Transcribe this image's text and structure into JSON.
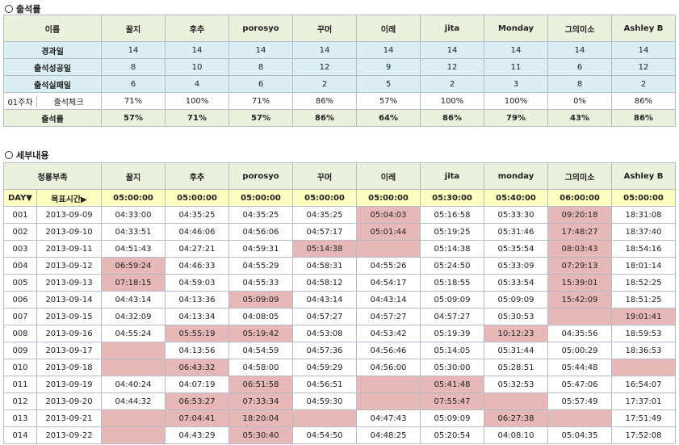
{
  "section1": {
    "title": "출석률",
    "header": [
      "이름",
      "꿀지",
      "후추",
      "porosyo",
      "꾸머",
      "이레",
      "jita",
      "Monday",
      "그의미소",
      "Ashley B"
    ],
    "rows": [
      {
        "label": "경과일",
        "values": [
          "14",
          "14",
          "14",
          "14",
          "14",
          "14",
          "14",
          "14",
          "14"
        ]
      },
      {
        "label": "출석성공일",
        "values": [
          "8",
          "10",
          "8",
          "12",
          "9",
          "12",
          "11",
          "6",
          "12"
        ]
      },
      {
        "label": "출석실패일",
        "values": [
          "6",
          "4",
          "6",
          "2",
          "5",
          "2",
          "3",
          "8",
          "2"
        ]
      }
    ],
    "check_row": {
      "week": "01주차",
      "label": "출석체크",
      "values": [
        "71%",
        "100%",
        "71%",
        "86%",
        "57%",
        "100%",
        "100%",
        "0%",
        "86%"
      ]
    },
    "rate_row": {
      "label": "출석률",
      "values": [
        "57%",
        "71%",
        "57%",
        "86%",
        "64%",
        "86%",
        "79%",
        "43%",
        "86%"
      ]
    }
  },
  "section2": {
    "title": "세부내용",
    "header": [
      "청룡부족",
      "꿀지",
      "후추",
      "porosyo",
      "꾸머",
      "이레",
      "jita",
      "monday",
      "그의미소",
      "Ashley B"
    ],
    "target": {
      "day_label": "DAY▼",
      "time_label": "목표시간▶",
      "values": [
        "05:00:00",
        "05:00:00",
        "05:00:00",
        "05:00:00",
        "05:00:00",
        "05:30:00",
        "05:40:00",
        "06:00:00",
        "05:00:00"
      ]
    },
    "rows": [
      {
        "day": "001",
        "date": "2013-09-09",
        "values": [
          "04:33:00",
          "04:35:25",
          "04:35:25",
          "04:35:25",
          "05:04:03",
          "05:16:58",
          "05:33:30",
          "09:20:18",
          "18:31:08"
        ],
        "miss": [
          4,
          7
        ]
      },
      {
        "day": "002",
        "date": "2013-09-10",
        "values": [
          "04:33:51",
          "04:46:06",
          "04:56:06",
          "04:57:17",
          "05:01:44",
          "05:19:25",
          "05:31:46",
          "17:48:27",
          "18:37:40"
        ],
        "miss": [
          4,
          7
        ]
      },
      {
        "day": "003",
        "date": "2013-09-11",
        "values": [
          "04:51:43",
          "04:27:21",
          "04:59:31",
          "05:14:38",
          "",
          "05:14:38",
          "05:35:54",
          "08:03:43",
          "18:54:16"
        ],
        "miss": [
          3,
          4,
          7
        ]
      },
      {
        "day": "004",
        "date": "2013-09-12",
        "values": [
          "06:59:24",
          "04:46:33",
          "04:55:29",
          "04:58:31",
          "04:55:26",
          "05:24:50",
          "05:33:09",
          "07:29:13",
          "18:01:14"
        ],
        "miss": [
          0,
          7
        ]
      },
      {
        "day": "005",
        "date": "2013-09-13",
        "values": [
          "07:18:15",
          "04:59:03",
          "04:55:33",
          "04:58:12",
          "04:54:17",
          "05:18:55",
          "05:33:54",
          "15:39:01",
          "18:52:25"
        ],
        "miss": [
          0,
          7
        ]
      },
      {
        "day": "006",
        "date": "2013-09-14",
        "values": [
          "04:43:14",
          "04:13:36",
          "05:09:09",
          "04:43:14",
          "04:43:14",
          "05:09:09",
          "05:09:09",
          "15:42:09",
          "18:51:25"
        ],
        "miss": [
          2,
          7
        ]
      },
      {
        "day": "007",
        "date": "2013-09-15",
        "values": [
          "04:32:09",
          "04:13:34",
          "04:08:05",
          "04:57:27",
          "04:57:27",
          "04:57:27",
          "05:30:53",
          "",
          "19:01:41"
        ],
        "miss": [
          7,
          8
        ]
      },
      {
        "day": "008",
        "date": "2013-09-16",
        "values": [
          "04:55:24",
          "05:55:19",
          "05:19:42",
          "04:53:08",
          "04:53:42",
          "05:19:39",
          "10:12:23",
          "04:35:56",
          "18:59:53"
        ],
        "miss": [
          1,
          2,
          6
        ]
      },
      {
        "day": "009",
        "date": "2013-09-17",
        "values": [
          "",
          "04:13:56",
          "04:54:59",
          "04:57:36",
          "04:56:46",
          "05:14:05",
          "05:31:44",
          "05:00:29",
          "18:36:53"
        ],
        "miss": [
          0
        ]
      },
      {
        "day": "010",
        "date": "2013-09-18",
        "values": [
          "",
          "06:43:32",
          "04:58:00",
          "04:59:29",
          "04:56:00",
          "05:30:00",
          "05:28:51",
          "05:44:48",
          ""
        ],
        "miss": [
          0,
          1,
          8
        ]
      },
      {
        "day": "011",
        "date": "2013-09-19",
        "values": [
          "04:40:24",
          "04:07:19",
          "06:51:58",
          "04:56:51",
          "",
          "05:41:48",
          "05:32:53",
          "05:47:06",
          "16:54:07"
        ],
        "miss": [
          2,
          4,
          5
        ]
      },
      {
        "day": "012",
        "date": "2013-09-20",
        "values": [
          "04:44:32",
          "06:53:27",
          "07:33:34",
          "04:59:30",
          "",
          "07:55:47",
          "",
          "05:57:49",
          "17:37:01"
        ],
        "miss": [
          1,
          2,
          4,
          5,
          6
        ]
      },
      {
        "day": "013",
        "date": "2013-09-21",
        "values": [
          "",
          "07:04:41",
          "18:20:04",
          "",
          "04:47:43",
          "05:09:09",
          "06:27:38",
          "",
          "17:51:49"
        ],
        "miss": [
          0,
          1,
          2,
          3,
          6,
          7
        ]
      },
      {
        "day": "014",
        "date": "2013-09-22",
        "values": [
          "",
          "04:43:29",
          "05:30:40",
          "04:54:50",
          "04:48:25",
          "05:20:54",
          "04:08:10",
          "05:04:35",
          "17:52:08"
        ],
        "miss": [
          0,
          2
        ]
      }
    ]
  }
}
